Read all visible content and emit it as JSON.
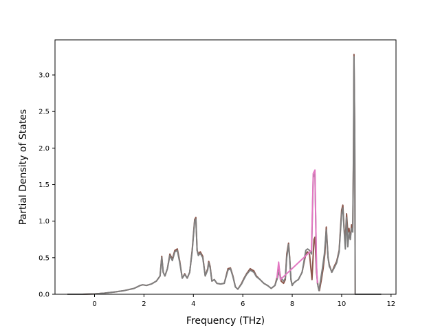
{
  "chart_data": {
    "type": "line",
    "xlabel": "Frequency (THz)",
    "ylabel": "Partial Density of States",
    "xlim": [
      -1.6,
      12.2
    ],
    "ylim": [
      0,
      3.48
    ],
    "xticks": [
      "0",
      "2",
      "4",
      "6",
      "8",
      "10",
      "12"
    ],
    "yticks": [
      "0.0",
      "0.5",
      "1.0",
      "1.5",
      "2.0",
      "2.5",
      "3.0"
    ],
    "grid": false,
    "legend": "none",
    "series": [
      {
        "color": "#8c564b",
        "x": [
          -1.1,
          -0.5,
          0.0,
          0.4,
          0.8,
          1.2,
          1.6,
          1.85,
          1.95,
          2.1,
          2.3,
          2.5,
          2.65,
          2.72,
          2.78,
          2.85,
          2.95,
          3.05,
          3.15,
          3.25,
          3.35,
          3.45,
          3.55,
          3.65,
          3.75,
          3.85,
          3.95,
          4.05,
          4.1,
          4.15,
          4.2,
          4.28,
          4.38,
          4.48,
          4.58,
          4.62,
          4.68,
          4.75,
          4.85,
          4.95,
          5.1,
          5.25,
          5.4,
          5.5,
          5.6,
          5.7,
          5.8,
          5.95,
          6.05,
          6.15,
          6.3,
          6.45,
          6.55,
          6.7,
          6.85,
          7.0,
          7.15,
          7.3,
          7.4,
          7.45,
          7.55,
          7.65,
          7.72,
          7.78,
          7.85,
          7.9,
          7.95,
          8.0,
          8.05,
          8.15,
          8.25,
          8.4,
          8.55,
          8.62,
          8.7,
          8.8,
          8.88,
          8.92,
          8.98,
          9.05,
          9.1,
          9.18,
          9.25,
          9.32,
          9.38,
          9.45,
          9.5,
          9.55,
          9.6,
          9.7,
          9.8,
          9.9,
          10.0,
          10.05,
          10.1,
          10.15,
          10.2,
          10.25,
          10.3,
          10.35,
          10.4,
          10.45,
          10.48,
          10.5,
          10.53,
          10.55,
          10.7,
          11.0,
          11.6
        ],
        "y": [
          0.0,
          0.0,
          0.005,
          0.015,
          0.03,
          0.05,
          0.08,
          0.12,
          0.13,
          0.12,
          0.14,
          0.18,
          0.25,
          0.52,
          0.3,
          0.25,
          0.35,
          0.55,
          0.48,
          0.6,
          0.62,
          0.45,
          0.22,
          0.28,
          0.22,
          0.3,
          0.6,
          1.02,
          1.05,
          0.6,
          0.55,
          0.58,
          0.52,
          0.25,
          0.35,
          0.45,
          0.38,
          0.18,
          0.2,
          0.15,
          0.14,
          0.15,
          0.35,
          0.36,
          0.25,
          0.1,
          0.07,
          0.15,
          0.22,
          0.28,
          0.35,
          0.32,
          0.25,
          0.2,
          0.15,
          0.12,
          0.08,
          0.12,
          0.25,
          0.4,
          0.18,
          0.15,
          0.2,
          0.55,
          0.7,
          0.5,
          0.2,
          0.12,
          0.15,
          0.18,
          0.2,
          0.3,
          0.55,
          0.58,
          0.55,
          0.2,
          0.75,
          0.78,
          0.3,
          0.1,
          0.05,
          0.2,
          0.35,
          0.55,
          0.92,
          0.5,
          0.4,
          0.35,
          0.3,
          0.38,
          0.45,
          0.6,
          1.15,
          1.22,
          0.9,
          0.75,
          1.1,
          0.85,
          0.9,
          0.75,
          0.95,
          0.9,
          2.0,
          3.28,
          2.2,
          0.0,
          0.0,
          0.0,
          0.0
        ]
      },
      {
        "color": "#7f7f7f",
        "x": [
          -1.1,
          -0.5,
          0.0,
          0.4,
          0.8,
          1.2,
          1.6,
          1.85,
          1.95,
          2.1,
          2.3,
          2.5,
          2.65,
          2.72,
          2.78,
          2.85,
          2.95,
          3.05,
          3.15,
          3.25,
          3.35,
          3.45,
          3.55,
          3.65,
          3.75,
          3.85,
          3.95,
          4.05,
          4.1,
          4.15,
          4.2,
          4.28,
          4.38,
          4.48,
          4.58,
          4.62,
          4.68,
          4.75,
          4.85,
          4.95,
          5.1,
          5.25,
          5.4,
          5.5,
          5.6,
          5.7,
          5.8,
          5.95,
          6.05,
          6.15,
          6.3,
          6.45,
          6.55,
          6.7,
          6.85,
          7.0,
          7.15,
          7.3,
          7.4,
          7.45,
          7.55,
          7.65,
          7.72,
          7.78,
          7.85,
          7.9,
          7.95,
          8.0,
          8.05,
          8.15,
          8.25,
          8.4,
          8.55,
          8.62,
          8.7,
          8.78,
          8.85,
          8.92,
          8.98,
          9.02,
          9.08,
          9.15,
          9.22,
          9.3,
          9.38,
          9.45,
          9.5,
          9.55,
          9.6,
          9.7,
          9.8,
          9.9,
          10.0,
          10.05,
          10.1,
          10.15,
          10.2,
          10.25,
          10.3,
          10.35,
          10.4,
          10.45,
          10.48,
          10.5,
          10.53,
          10.55,
          10.7,
          11.0,
          11.6
        ],
        "y": [
          0.0,
          0.0,
          0.005,
          0.015,
          0.03,
          0.05,
          0.08,
          0.12,
          0.13,
          0.12,
          0.14,
          0.18,
          0.25,
          0.5,
          0.3,
          0.25,
          0.35,
          0.53,
          0.46,
          0.58,
          0.6,
          0.43,
          0.22,
          0.27,
          0.22,
          0.3,
          0.58,
          1.0,
          1.03,
          0.6,
          0.53,
          0.56,
          0.5,
          0.25,
          0.33,
          0.43,
          0.36,
          0.18,
          0.2,
          0.15,
          0.14,
          0.15,
          0.33,
          0.35,
          0.24,
          0.1,
          0.07,
          0.14,
          0.21,
          0.27,
          0.33,
          0.3,
          0.24,
          0.2,
          0.15,
          0.12,
          0.08,
          0.12,
          0.22,
          0.3,
          0.22,
          0.18,
          0.22,
          0.5,
          0.68,
          0.48,
          0.2,
          0.12,
          0.15,
          0.18,
          0.2,
          0.3,
          0.6,
          0.62,
          0.6,
          0.55,
          1.6,
          1.65,
          0.4,
          0.15,
          0.05,
          0.2,
          0.35,
          0.55,
          0.88,
          0.5,
          0.38,
          0.35,
          0.3,
          0.36,
          0.43,
          0.58,
          1.1,
          1.18,
          0.88,
          0.62,
          1.05,
          0.65,
          0.85,
          0.75,
          0.9,
          0.85,
          1.9,
          3.25,
          2.15,
          0.0,
          0.0,
          0.0,
          0.0
        ]
      },
      {
        "color": "#e377c2",
        "x": [
          7.38,
          7.45,
          7.52,
          8.78,
          8.85,
          8.92,
          8.98,
          9.02
        ],
        "y": [
          0.22,
          0.44,
          0.2,
          0.6,
          1.65,
          1.7,
          0.4,
          0.15
        ]
      }
    ]
  }
}
